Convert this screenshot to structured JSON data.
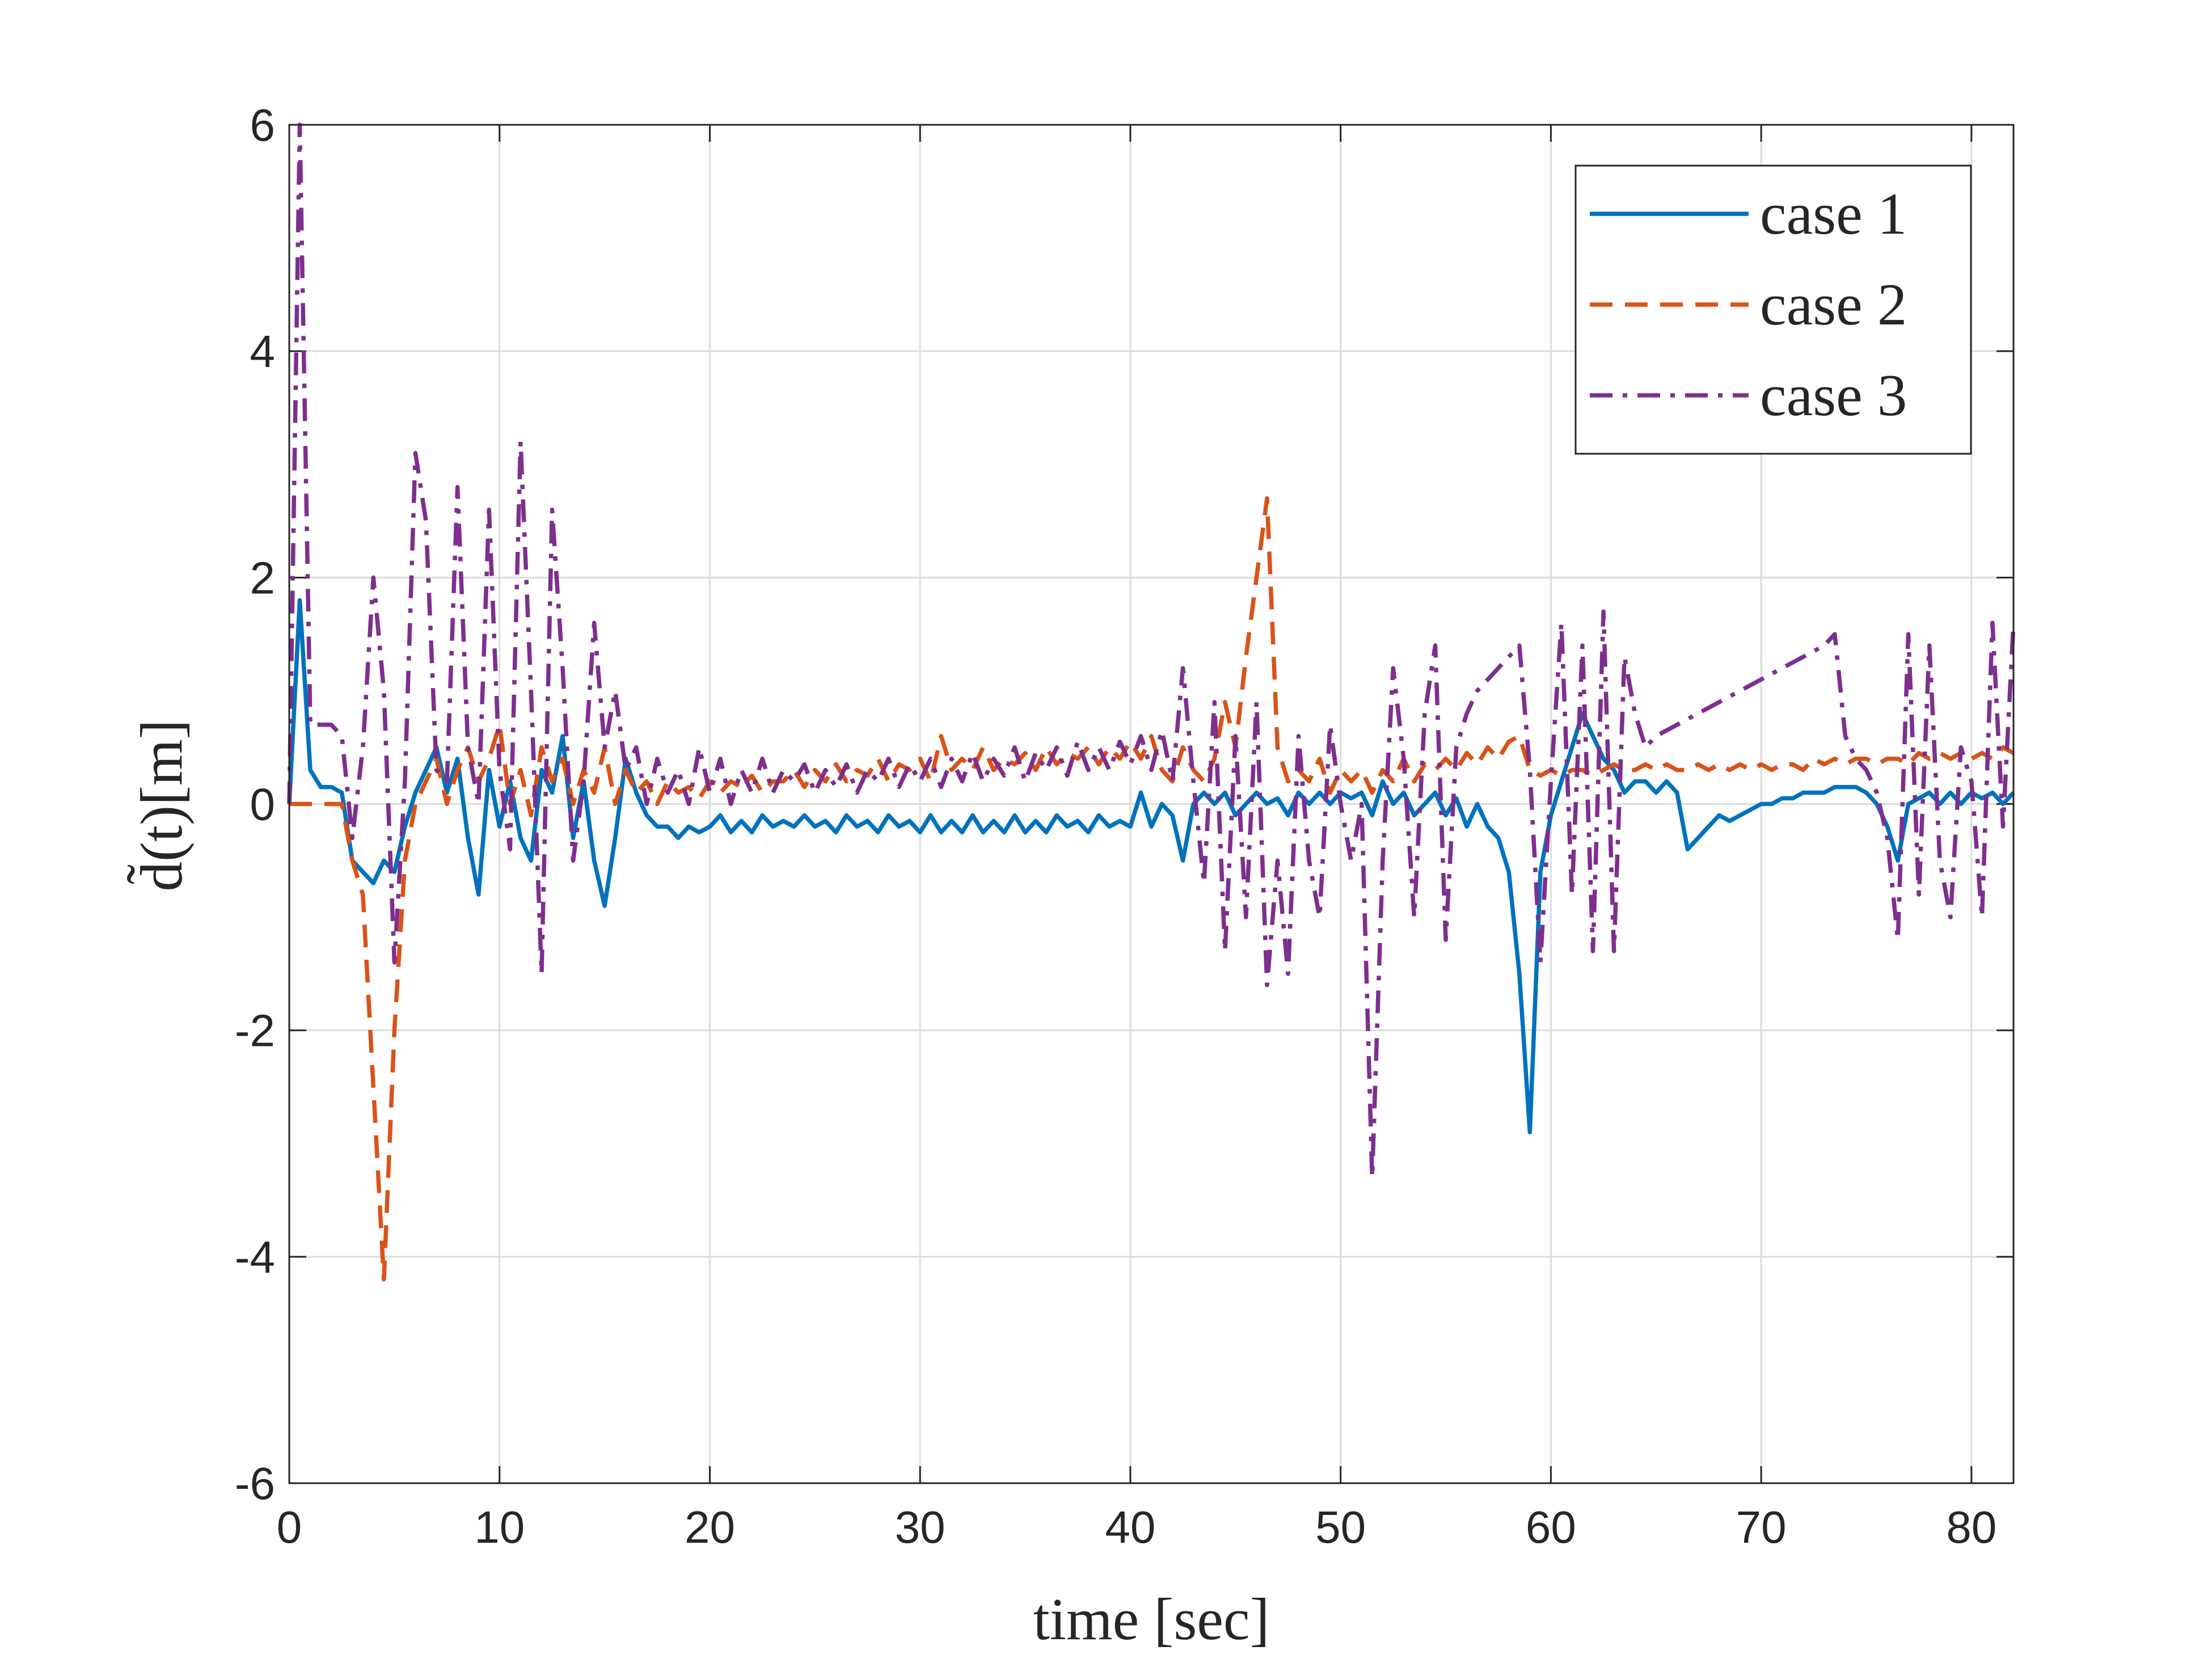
{
  "chart_data": {
    "type": "line",
    "xlabel": "time [sec]",
    "ylabel": "d̃(t)[m]",
    "xlim": [
      0,
      82
    ],
    "ylim": [
      -6,
      6
    ],
    "xticks": [
      0,
      10,
      20,
      30,
      40,
      50,
      60,
      70,
      80
    ],
    "yticks": [
      -6,
      -4,
      -2,
      0,
      2,
      4,
      6
    ],
    "grid": true,
    "legend": "upper right",
    "x": [
      0,
      0.5,
      1,
      1.5,
      2,
      2.5,
      3,
      3.5,
      4,
      4.5,
      5,
      5.5,
      6,
      6.5,
      7,
      7.5,
      8,
      8.5,
      9,
      9.5,
      10,
      10.5,
      11,
      11.5,
      12,
      12.5,
      13,
      13.5,
      14,
      14.5,
      15,
      15.5,
      16,
      16.5,
      17,
      17.5,
      18,
      18.5,
      19,
      19.5,
      20,
      20.5,
      21,
      21.5,
      22,
      22.5,
      23,
      23.5,
      24,
      24.5,
      25,
      25.5,
      26,
      26.5,
      27,
      27.5,
      28,
      28.5,
      29,
      29.5,
      30,
      30.5,
      31,
      31.5,
      32,
      32.5,
      33,
      33.5,
      34,
      34.5,
      35,
      35.5,
      36,
      36.5,
      37,
      37.5,
      38,
      38.5,
      39,
      39.5,
      40,
      40.5,
      41,
      41.5,
      42,
      42.5,
      43,
      43.5,
      44,
      44.5,
      45,
      45.5,
      46,
      46.5,
      47,
      47.5,
      48,
      48.5,
      49,
      49.5,
      50,
      50.5,
      51,
      51.5,
      52,
      52.5,
      53,
      53.5,
      54,
      54.5,
      55,
      55.5,
      56,
      56.5,
      57,
      57.5,
      58,
      58.5,
      59,
      59.5,
      60,
      60.5,
      61,
      61.5,
      62,
      62.5,
      63,
      63.5,
      64,
      64.5,
      65,
      65.5,
      66,
      66.5,
      67,
      67.5,
      68,
      68.5,
      69,
      69.5,
      70,
      70.5,
      71,
      71.5,
      72,
      72.5,
      73,
      73.5,
      74,
      74.5,
      75,
      75.5,
      76,
      76.5,
      77,
      77.5,
      78,
      78.5,
      79,
      79.5,
      80,
      80.5,
      81,
      81.5,
      82
    ],
    "series": [
      {
        "name": "case 1",
        "color": "#0072BD",
        "dash": "solid",
        "values": [
          0,
          1.8,
          0.3,
          0.15,
          0.15,
          0.1,
          -0.5,
          -0.6,
          -0.7,
          -0.5,
          -0.6,
          -0.2,
          0.1,
          0.3,
          0.5,
          0.1,
          0.4,
          -0.3,
          -0.8,
          0.3,
          -0.2,
          0.2,
          -0.3,
          -0.5,
          0.3,
          0.1,
          0.6,
          -0.3,
          0.2,
          -0.5,
          -0.9,
          -0.3,
          0.4,
          0.1,
          -0.1,
          -0.2,
          -0.2,
          -0.3,
          -0.2,
          -0.25,
          -0.2,
          -0.1,
          -0.25,
          -0.15,
          -0.25,
          -0.1,
          -0.2,
          -0.15,
          -0.2,
          -0.1,
          -0.2,
          -0.15,
          -0.25,
          -0.1,
          -0.2,
          -0.15,
          -0.25,
          -0.1,
          -0.2,
          -0.15,
          -0.25,
          -0.1,
          -0.25,
          -0.15,
          -0.25,
          -0.1,
          -0.25,
          -0.15,
          -0.25,
          -0.1,
          -0.25,
          -0.15,
          -0.25,
          -0.1,
          -0.2,
          -0.15,
          -0.25,
          -0.1,
          -0.2,
          -0.15,
          -0.2,
          0.1,
          -0.2,
          0.0,
          -0.1,
          -0.5,
          0.0,
          0.1,
          0.0,
          0.1,
          -0.1,
          0.0,
          0.1,
          0.0,
          0.05,
          -0.1,
          0.1,
          0.0,
          0.1,
          0.0,
          0.1,
          0.05,
          0.1,
          -0.1,
          0.2,
          0.0,
          0.1,
          -0.1,
          0.0,
          0.1,
          -0.1,
          0.05,
          -0.2,
          0.0,
          -0.2,
          -0.3,
          -0.6,
          -1.5,
          -2.9,
          -0.6,
          -0.1,
          0.2,
          0.5,
          0.8,
          0.6,
          0.4,
          0.3,
          0.1,
          0.2,
          0.2,
          0.1,
          0.2,
          0.1,
          -0.4,
          -0.3,
          -0.2,
          -0.1,
          -0.15,
          -0.1,
          -0.05,
          0.0,
          0.0,
          0.05,
          0.05,
          0.1,
          0.1,
          0.1,
          0.15,
          0.15,
          0.15,
          0.1,
          0.0,
          -0.2,
          -0.5,
          0.0,
          0.05,
          0.1,
          0.0,
          0.1,
          0.0,
          0.1,
          0.05,
          0.1,
          0.0,
          0.1
        ]
      },
      {
        "name": "case 2",
        "color": "#D95319",
        "dash": "dashed",
        "values": [
          0,
          0,
          0,
          0,
          0,
          0,
          -0.5,
          -0.8,
          -2.5,
          -4.2,
          -2.0,
          -0.5,
          0.0,
          0.2,
          0.4,
          0.0,
          0.3,
          0.5,
          0.2,
          0.4,
          0.7,
          0.0,
          0.3,
          -0.1,
          0.5,
          0.2,
          0.4,
          0.0,
          0.3,
          0.1,
          0.5,
          0.0,
          0.3,
          0.1,
          0.2,
          0.0,
          0.2,
          0.1,
          0.15,
          0.05,
          0.2,
          0.1,
          0.2,
          0.15,
          0.25,
          0.1,
          0.2,
          0.2,
          0.3,
          0.15,
          0.3,
          0.2,
          0.35,
          0.2,
          0.3,
          0.25,
          0.4,
          0.2,
          0.35,
          0.3,
          0.4,
          0.2,
          0.6,
          0.3,
          0.4,
          0.3,
          0.5,
          0.3,
          0.4,
          0.35,
          0.45,
          0.3,
          0.5,
          0.35,
          0.45,
          0.4,
          0.5,
          0.35,
          0.5,
          0.4,
          0.55,
          0.4,
          0.6,
          0.3,
          0.2,
          0.5,
          0.3,
          0.2,
          0.4,
          0.9,
          0.5,
          1.3,
          2.0,
          2.7,
          0.5,
          0.2,
          0.3,
          0.2,
          0.4,
          0.1,
          0.3,
          0.2,
          0.3,
          0.1,
          0.3,
          0.2,
          0.4,
          0.2,
          0.35,
          0.3,
          0.4,
          0.3,
          0.45,
          0.35,
          0.5,
          0.4,
          0.55,
          0.6,
          0.3,
          0.25,
          0.3,
          0.25,
          0.3,
          0.3,
          0.25,
          0.3,
          0.35,
          0.3,
          0.3,
          0.35,
          0.3,
          0.35,
          0.3,
          0.3,
          0.35,
          0.3,
          0.35,
          0.3,
          0.35,
          0.3,
          0.35,
          0.3,
          0.35,
          0.35,
          0.3,
          0.4,
          0.35,
          0.4,
          0.35,
          0.4,
          0.4,
          0.35,
          0.4,
          0.4,
          0.35,
          0.45,
          0.4,
          0.45,
          0.4,
          0.45,
          0.4,
          0.45,
          0.4,
          0.5,
          0.45
        ]
      },
      {
        "name": "case 3",
        "color": "#7E2F8E",
        "dash": "dashdot",
        "values": [
          0,
          6,
          0.7,
          0.7,
          0.7,
          0.6,
          -0.3,
          0.5,
          2.0,
          1.0,
          -1.4,
          0.2,
          3.1,
          2.5,
          0.3,
          0.2,
          2.8,
          0.5,
          0.0,
          2.6,
          0.3,
          -0.4,
          3.2,
          1.0,
          -1.5,
          2.6,
          1.2,
          -0.5,
          0.2,
          1.6,
          0.5,
          1.0,
          0.3,
          0.5,
          0.0,
          0.4,
          0.1,
          0.3,
          0.0,
          0.5,
          0.1,
          0.4,
          0.0,
          0.3,
          0.1,
          0.4,
          0.1,
          0.3,
          0.2,
          0.35,
          0.1,
          0.3,
          0.15,
          0.35,
          0.1,
          0.3,
          0.2,
          0.4,
          0.15,
          0.35,
          0.2,
          0.4,
          0.15,
          0.4,
          0.2,
          0.45,
          0.2,
          0.4,
          0.25,
          0.5,
          0.2,
          0.45,
          0.3,
          0.5,
          0.25,
          0.55,
          0.3,
          0.5,
          0.3,
          0.55,
          0.35,
          0.6,
          0.3,
          0.65,
          0.2,
          1.2,
          0.2,
          -0.7,
          0.9,
          -1.3,
          0.6,
          -1.0,
          0.9,
          -1.6,
          -0.5,
          -1.5,
          0.6,
          -0.5,
          -1.0,
          0.7,
          0.0,
          -0.5,
          0.0,
          -3.3,
          -0.5,
          1.2,
          0.4,
          -1.0,
          0.8,
          1.4,
          -1.2,
          0.5,
          0.8,
          1.0,
          1.1,
          1.2,
          1.3,
          1.4,
          0.3,
          -1.4,
          0.2,
          1.6,
          -0.8,
          1.4,
          -1.3,
          1.7,
          -1.3,
          1.3,
          0.8,
          0.5,
          0.6,
          0.65,
          0.7,
          0.75,
          0.8,
          0.85,
          0.9,
          0.95,
          1.0,
          1.05,
          1.1,
          1.15,
          1.2,
          1.25,
          1.3,
          1.35,
          1.4,
          1.5,
          0.6,
          0.4,
          0.3,
          0.1,
          -0.3,
          -1.2,
          1.5,
          -0.8,
          1.4,
          -0.5,
          -1.0,
          0.5,
          0.2,
          -1.0,
          1.6,
          -0.2,
          1.6
        ]
      }
    ]
  }
}
